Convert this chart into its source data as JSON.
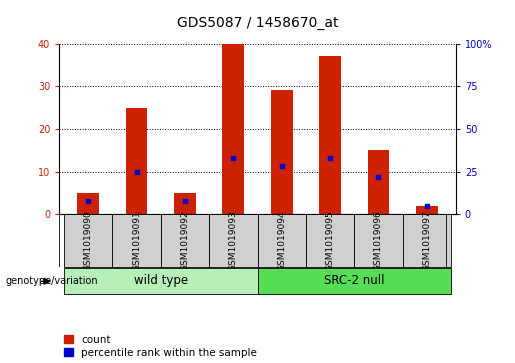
{
  "title": "GDS5087 / 1458670_at",
  "samples": [
    "GSM1019090",
    "GSM1019091",
    "GSM1019092",
    "GSM1019093",
    "GSM1019094",
    "GSM1019095",
    "GSM1019096",
    "GSM1019097"
  ],
  "counts": [
    5,
    25,
    5,
    40,
    29,
    37,
    15,
    2
  ],
  "percentiles": [
    8,
    25,
    8,
    33,
    28,
    33,
    22,
    5
  ],
  "groups": [
    {
      "label": "wild type",
      "start": 0,
      "end": 3,
      "color": "#b8eeb8"
    },
    {
      "label": "SRC-2 null",
      "start": 4,
      "end": 7,
      "color": "#55dd55"
    }
  ],
  "left_ylim": [
    0,
    40
  ],
  "right_ylim": [
    0,
    100
  ],
  "left_yticks": [
    0,
    10,
    20,
    30,
    40
  ],
  "right_yticks": [
    0,
    25,
    50,
    75,
    100
  ],
  "right_yticklabels": [
    "0",
    "25",
    "50",
    "75",
    "100%"
  ],
  "bar_color": "#cc2200",
  "percentile_color": "#0000cc",
  "bg_color": "#d0d0d0",
  "title_fontsize": 10,
  "tick_fontsize": 7,
  "legend_fontsize": 7.5,
  "group_label_fontsize": 8.5,
  "sample_fontsize": 6.5,
  "bar_width": 0.45
}
